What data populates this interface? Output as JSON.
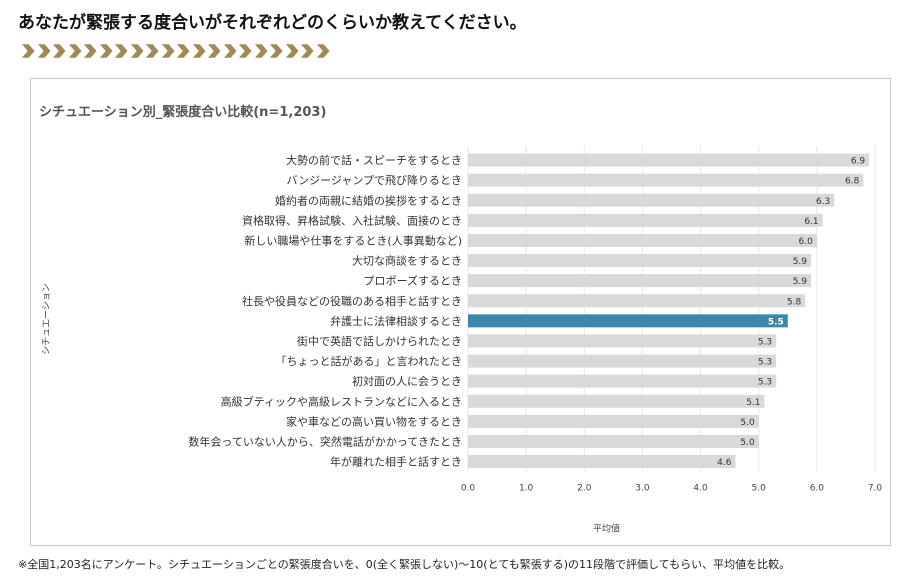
{
  "heading": "あなたが緊張する度合いがそれぞれどのくらいか教えてください。",
  "footnote": "※全国1,203名にアンケート。シチュエーションごとの緊張度合いを、0(全く緊張しない)～10(とても緊張する)の11段階で評価してもらい、平均値を比較。",
  "colors": {
    "chevron": "#a08a55",
    "bar": "#d9d9d9",
    "highlight": "#3a87ad",
    "grid": "#e6e6e6"
  },
  "chart_data": {
    "type": "bar",
    "orientation": "horizontal",
    "title": "シチュエーション別_緊張度合い比較(n=1,203)",
    "xlabel": "平均値",
    "ylabel": "シチュエーション",
    "xlim": [
      0,
      7
    ],
    "xticks": [
      "0.0",
      "1.0",
      "2.0",
      "3.0",
      "4.0",
      "5.0",
      "6.0",
      "7.0"
    ],
    "grid": true,
    "highlight": "弁護士に法律相談するとき",
    "categories": [
      "大勢の前で話・スピーチをするとき",
      "バンジージャンプで飛び降りるとき",
      "婚約者の両親に結婚の挨拶をするとき",
      "資格取得、昇格試験、入社試験、面接のとき",
      "新しい職場や仕事をするとき(人事異動など)",
      "大切な商談をするとき",
      "プロポーズするとき",
      "社長や役員などの役職のある相手と話すとき",
      "弁護士に法律相談するとき",
      "街中で英語で話しかけられたとき",
      "「ちょっと話がある」と言われたとき",
      "初対面の人に会うとき",
      "高級ブティックや高級レストランなどに入るとき",
      "家や車などの高い買い物をするとき",
      "数年会っていない人から、突然電話がかかってきたとき",
      "年が離れた相手と話すとき"
    ],
    "values": [
      6.9,
      6.8,
      6.3,
      6.1,
      6.0,
      5.9,
      5.9,
      5.8,
      5.5,
      5.3,
      5.3,
      5.3,
      5.1,
      5.0,
      5.0,
      4.6
    ],
    "value_labels": [
      "6.9",
      "6.8",
      "6.3",
      "6.1",
      "6.0",
      "5.9",
      "5.9",
      "5.8",
      "5.5",
      "5.3",
      "5.3",
      "5.3",
      "5.1",
      "5.0",
      "5.0",
      "4.6"
    ]
  }
}
